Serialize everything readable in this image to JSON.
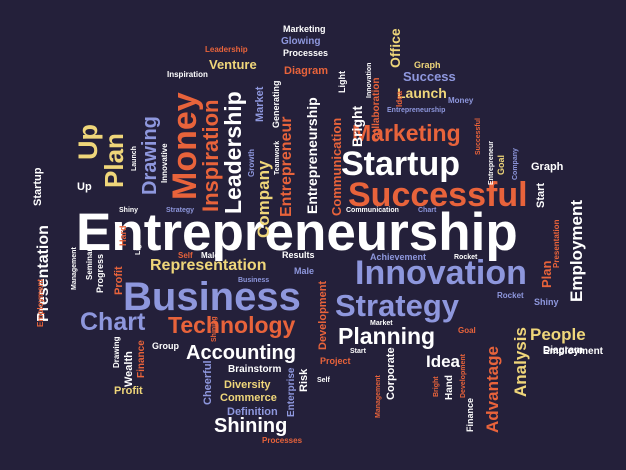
{
  "colors": {
    "background": "#24203a",
    "white": "#ffffff",
    "orange": "#e8633b",
    "blue": "#8e97dd",
    "yellow": "#efd67a"
  },
  "words": [
    {
      "id": "entrepreneurship-main",
      "text": "Entrepreneurship",
      "color": "white"
    },
    {
      "id": "startup-big",
      "text": "Startup",
      "color": "white"
    },
    {
      "id": "successful",
      "text": "Successful",
      "color": "orange"
    },
    {
      "id": "marketing-big",
      "text": "Marketing",
      "color": "orange"
    },
    {
      "id": "innovation",
      "text": "Innovation",
      "color": "blue"
    },
    {
      "id": "business",
      "text": "Business",
      "color": "blue"
    },
    {
      "id": "strategy",
      "text": "Strategy",
      "color": "blue"
    },
    {
      "id": "chart-big",
      "text": "Chart",
      "color": "blue"
    },
    {
      "id": "technology",
      "text": "Technology",
      "color": "orange"
    },
    {
      "id": "planning",
      "text": "Planning",
      "color": "white"
    },
    {
      "id": "accounting",
      "text": "Accounting",
      "color": "white"
    },
    {
      "id": "representation",
      "text": "Representation",
      "color": "yellow"
    },
    {
      "id": "shining",
      "text": "Shining",
      "color": "white"
    },
    {
      "id": "people",
      "text": "People",
      "color": "yellow"
    },
    {
      "id": "idea",
      "text": "Idea",
      "color": "white"
    },
    {
      "id": "launch-top",
      "text": "Launch",
      "color": "yellow"
    },
    {
      "id": "success-top",
      "text": "Success",
      "color": "blue"
    },
    {
      "id": "venture",
      "text": "Venture",
      "color": "yellow"
    },
    {
      "id": "diagram-top",
      "text": "Diagram",
      "color": "orange"
    },
    {
      "id": "glowing",
      "text": "Glowing",
      "color": "blue"
    },
    {
      "id": "marketing-small",
      "text": "Marketing",
      "color": "white"
    },
    {
      "id": "processes-top",
      "text": "Processes",
      "color": "white"
    },
    {
      "id": "leadership-small",
      "text": "Leadership",
      "color": "orange"
    },
    {
      "id": "inspiration-small",
      "text": "Inspiration",
      "color": "white"
    },
    {
      "id": "graph-top",
      "text": "Graph",
      "color": "yellow"
    },
    {
      "id": "graph-right",
      "text": "Graph",
      "color": "white"
    },
    {
      "id": "employment-right",
      "text": "Employment",
      "color": "white"
    },
    {
      "id": "diagram-right",
      "text": "Diagram",
      "color": "white"
    },
    {
      "id": "achievement",
      "text": "Achievement",
      "color": "blue"
    },
    {
      "id": "results",
      "text": "Results",
      "color": "white"
    },
    {
      "id": "male",
      "text": "Male",
      "color": "blue"
    },
    {
      "id": "business-small",
      "text": "Business",
      "color": "blue"
    },
    {
      "id": "self-left",
      "text": "Self",
      "color": "orange"
    },
    {
      "id": "male-left",
      "text": "Male",
      "color": "white"
    },
    {
      "id": "group",
      "text": "Group",
      "color": "white"
    },
    {
      "id": "brainstorm",
      "text": "Brainstorm",
      "color": "white"
    },
    {
      "id": "diversity",
      "text": "Diversity",
      "color": "yellow"
    },
    {
      "id": "commerce",
      "text": "Commerce",
      "color": "yellow"
    },
    {
      "id": "definition",
      "text": "Definition",
      "color": "blue"
    },
    {
      "id": "processes-bottom",
      "text": "Processes",
      "color": "orange"
    },
    {
      "id": "profit",
      "text": "Profit",
      "color": "yellow"
    },
    {
      "id": "shiny-left",
      "text": "Shiny",
      "color": "white"
    },
    {
      "id": "strategy-small",
      "text": "Strategy",
      "color": "blue"
    },
    {
      "id": "communication-small",
      "text": "Communication",
      "color": "white"
    },
    {
      "id": "chart-small",
      "text": "Chart",
      "color": "blue"
    },
    {
      "id": "market",
      "text": "Market",
      "color": "white"
    },
    {
      "id": "goal-mid",
      "text": "Goal",
      "color": "orange"
    },
    {
      "id": "rocket-mid",
      "text": "Rocket",
      "color": "white"
    },
    {
      "id": "rocket-right",
      "text": "Rocket",
      "color": "blue"
    },
    {
      "id": "shiny-right",
      "text": "Shiny",
      "color": "blue"
    },
    {
      "id": "start-small",
      "text": "Start",
      "color": "white"
    },
    {
      "id": "project",
      "text": "Project",
      "color": "orange"
    },
    {
      "id": "self-bottom",
      "text": "Self",
      "color": "white"
    },
    {
      "id": "up-small",
      "text": "Up",
      "color": "white"
    },
    {
      "id": "money-small",
      "text": "Money",
      "color": "blue"
    },
    {
      "id": "entrepreneurship-small",
      "text": "Entrepreneurship",
      "color": "blue"
    },
    {
      "id": "seminar",
      "text": "Seminar",
      "color": "white"
    },
    {
      "id": "progress",
      "text": "Progress",
      "color": "white"
    },
    {
      "id": "management-left",
      "text": "Management",
      "color": "white"
    },
    {
      "id": "inspiration-top",
      "text": "Inspiration",
      "color": "white"
    },
    {
      "id": "money-big",
      "text": "Money",
      "color": "orange"
    },
    {
      "id": "inspiration-big",
      "text": "Inspiration",
      "color": "orange"
    },
    {
      "id": "leadership-big",
      "text": "Leadership",
      "color": "white"
    },
    {
      "id": "company",
      "text": "Company",
      "color": "yellow"
    },
    {
      "id": "entrepreneur",
      "text": "Entrepreneur",
      "color": "orange"
    },
    {
      "id": "entrepreneurship-vert",
      "text": "Entrepreneurship",
      "color": "white"
    },
    {
      "id": "communication-vert",
      "text": "Communication",
      "color": "orange"
    },
    {
      "id": "bright",
      "text": "Bright",
      "color": "white"
    },
    {
      "id": "collaboration",
      "text": "Collaboration",
      "color": "orange"
    },
    {
      "id": "office",
      "text": "Office",
      "color": "yellow"
    },
    {
      "id": "light-top",
      "text": "Light",
      "color": "white"
    },
    {
      "id": "idea-top",
      "text": "Idea",
      "color": "orange"
    },
    {
      "id": "innovation-small",
      "text": "Innovation",
      "color": "white"
    },
    {
      "id": "generating",
      "text": "Generating",
      "color": "white"
    },
    {
      "id": "market-top",
      "text": "Market",
      "color": "blue"
    },
    {
      "id": "growth",
      "text": "Growth",
      "color": "blue"
    },
    {
      "id": "teamwork",
      "text": "Teamwork",
      "color": "white"
    },
    {
      "id": "drawing-big",
      "text": "Drawing",
      "color": "blue"
    },
    {
      "id": "innovative",
      "text": "Innovative",
      "color": "white"
    },
    {
      "id": "launch-small",
      "text": "Launch",
      "color": "white"
    },
    {
      "id": "plan-big",
      "text": "Plan",
      "color": "yellow"
    },
    {
      "id": "up-big",
      "text": "Up",
      "color": "yellow"
    },
    {
      "id": "startup-small",
      "text": "Startup",
      "color": "white"
    },
    {
      "id": "presentation-left",
      "text": "Presentation",
      "color": "white"
    },
    {
      "id": "employment-left",
      "text": "Employment",
      "color": "orange"
    },
    {
      "id": "hard",
      "text": "Hard",
      "color": "orange"
    },
    {
      "id": "light-mid",
      "text": "Light",
      "color": "white"
    },
    {
      "id": "profit-small",
      "text": "Profit",
      "color": "orange"
    },
    {
      "id": "successful-small",
      "text": "Successful",
      "color": "orange"
    },
    {
      "id": "entrepreneur-small",
      "text": "Entrepreneur",
      "color": "white"
    },
    {
      "id": "goal-right",
      "text": "Goal",
      "color": "yellow"
    },
    {
      "id": "company-small",
      "text": "Company",
      "color": "blue"
    },
    {
      "id": "start-right",
      "text": "Start",
      "color": "white"
    },
    {
      "id": "employment-vert",
      "text": "Employment",
      "color": "white"
    },
    {
      "id": "presentation-right",
      "text": "Presentation",
      "color": "orange"
    },
    {
      "id": "plan-right",
      "text": "Plan",
      "color": "orange"
    },
    {
      "id": "analysis",
      "text": "Analysis",
      "color": "yellow"
    },
    {
      "id": "advantage",
      "text": "Advantage",
      "color": "orange"
    },
    {
      "id": "development-right",
      "text": "Development",
      "color": "orange"
    },
    {
      "id": "hand-right",
      "text": "Hand",
      "color": "white"
    },
    {
      "id": "finance-right",
      "text": "Finance",
      "color": "white"
    },
    {
      "id": "bright-small",
      "text": "Bright",
      "color": "orange"
    },
    {
      "id": "corporate",
      "text": "Corporate",
      "color": "white"
    },
    {
      "id": "management-right",
      "text": "Management",
      "color": "orange"
    },
    {
      "id": "development-mid",
      "text": "Development",
      "color": "orange"
    },
    {
      "id": "risk",
      "text": "Risk",
      "color": "white"
    },
    {
      "id": "enterprise",
      "text": "Enterprise",
      "color": "blue"
    },
    {
      "id": "cheerful",
      "text": "Cheerful",
      "color": "blue"
    },
    {
      "id": "shining-small",
      "text": "Shining",
      "color": "orange"
    },
    {
      "id": "drawing-small",
      "text": "Drawing",
      "color": "white"
    },
    {
      "id": "wealth",
      "text": "Wealth",
      "color": "white"
    },
    {
      "id": "finance-left",
      "text": "Finance",
      "color": "orange"
    }
  ]
}
